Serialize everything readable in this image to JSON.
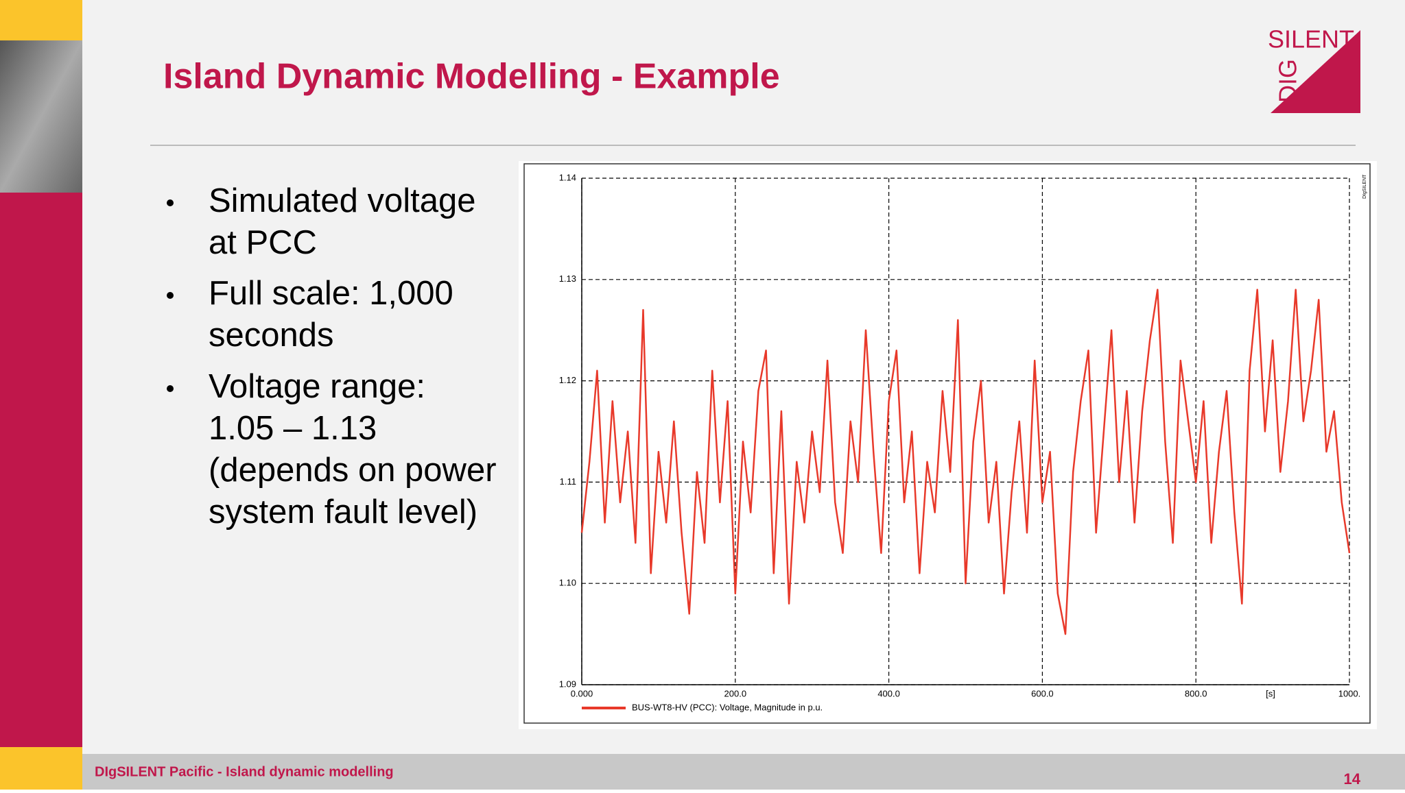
{
  "title": "Island Dynamic Modelling - Example",
  "bullets": [
    [
      "Simulated voltage",
      "at PCC"
    ],
    [
      "Full scale: 1,000",
      "seconds"
    ],
    [
      "Voltage range:",
      "1.05 – 1.13",
      "(depends on power",
      "system fault level)"
    ]
  ],
  "footer": "DIgSILENT Pacific - Island dynamic modelling",
  "page_number": "14",
  "logo": {
    "top": "SILENT",
    "side": "DIG"
  },
  "chart_data": {
    "type": "line",
    "watermark": "DIgSILENT",
    "x_unit": "[s]",
    "xlim": [
      0,
      1000
    ],
    "xticks": [
      {
        "value": 0,
        "label": "0.000"
      },
      {
        "value": 200,
        "label": "200.0"
      },
      {
        "value": 400,
        "label": "400.0"
      },
      {
        "value": 600,
        "label": "600.0"
      },
      {
        "value": 800,
        "label": "800.0"
      },
      {
        "value": 1000,
        "label": "1000."
      }
    ],
    "ylim": [
      1.09,
      1.14
    ],
    "yticks": [
      1.09,
      {
        "value": 1.1,
        "label": "1.10"
      },
      1.11,
      1.12,
      1.13,
      1.14
    ],
    "grid": true,
    "x": [
      0,
      10,
      20,
      30,
      40,
      50,
      60,
      70,
      80,
      90,
      100,
      110,
      120,
      130,
      140,
      150,
      160,
      170,
      180,
      190,
      200,
      210,
      220,
      230,
      240,
      250,
      260,
      270,
      280,
      290,
      300,
      310,
      320,
      330,
      340,
      350,
      360,
      370,
      380,
      390,
      400,
      410,
      420,
      430,
      440,
      450,
      460,
      470,
      480,
      490,
      500,
      510,
      520,
      530,
      540,
      550,
      560,
      570,
      580,
      590,
      600,
      610,
      620,
      630,
      640,
      650,
      660,
      670,
      680,
      690,
      700,
      710,
      720,
      730,
      740,
      750,
      760,
      770,
      780,
      790,
      800,
      810,
      820,
      830,
      840,
      850,
      860,
      870,
      880,
      890,
      900,
      910,
      920,
      930,
      940,
      950,
      960,
      970,
      980,
      990,
      1000
    ],
    "series": [
      {
        "name": "BUS-WT8-HV (PCC): Voltage, Magnitude in p.u.",
        "color": "#e8392a",
        "values": [
          1.105,
          1.112,
          1.121,
          1.106,
          1.118,
          1.108,
          1.115,
          1.104,
          1.127,
          1.101,
          1.113,
          1.106,
          1.116,
          1.105,
          1.097,
          1.111,
          1.104,
          1.121,
          1.108,
          1.118,
          1.099,
          1.114,
          1.107,
          1.119,
          1.123,
          1.101,
          1.117,
          1.098,
          1.112,
          1.106,
          1.115,
          1.109,
          1.122,
          1.108,
          1.103,
          1.116,
          1.11,
          1.125,
          1.113,
          1.103,
          1.118,
          1.123,
          1.108,
          1.115,
          1.101,
          1.112,
          1.107,
          1.119,
          1.111,
          1.126,
          1.1,
          1.114,
          1.12,
          1.106,
          1.112,
          1.099,
          1.109,
          1.116,
          1.105,
          1.122,
          1.108,
          1.113,
          1.099,
          1.095,
          1.111,
          1.118,
          1.123,
          1.105,
          1.115,
          1.125,
          1.11,
          1.119,
          1.106,
          1.117,
          1.124,
          1.129,
          1.114,
          1.104,
          1.122,
          1.116,
          1.11,
          1.118,
          1.104,
          1.113,
          1.119,
          1.107,
          1.098,
          1.121,
          1.129,
          1.115,
          1.124,
          1.111,
          1.118,
          1.129,
          1.116,
          1.121,
          1.128,
          1.113,
          1.117,
          1.108,
          1.103
        ]
      }
    ]
  }
}
